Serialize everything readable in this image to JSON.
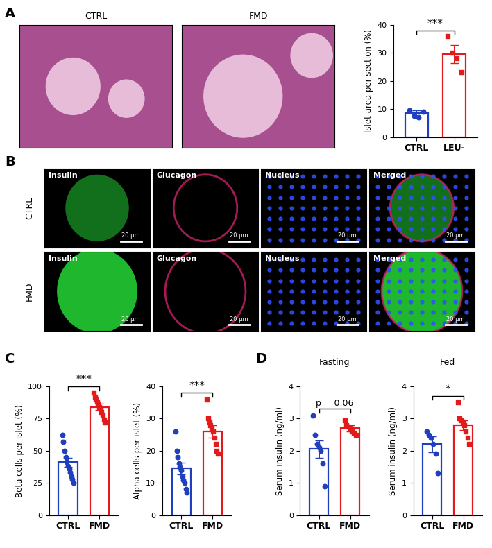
{
  "panel_labels": [
    "A",
    "B",
    "C",
    "D"
  ],
  "images": {
    "he": [
      "CTRL",
      "FMD"
    ],
    "fluorescence": {
      "rows": [
        "CTRL",
        "FMD"
      ],
      "columns": [
        "Insulin",
        "Glucagon",
        "Nucleus",
        "Merged"
      ],
      "scale_bar": "20 μm"
    }
  },
  "chart_data": [
    {
      "type": "bar",
      "ylabel": "Islet area per section (%)",
      "categories": [
        "CTRL",
        "LEU-"
      ],
      "values": [
        8.5,
        29.5
      ],
      "errors": [
        1.0,
        3.3
      ],
      "points": [
        [
          9.5,
          7.5,
          7.0,
          9.0
        ],
        [
          36,
          30,
          28,
          23
        ]
      ],
      "colors": [
        "#1f3fbf",
        "#e31a1c"
      ],
      "ylim": [
        0,
        40
      ],
      "yticks": [
        0,
        10,
        20,
        30,
        40
      ],
      "annotation": "***"
    },
    {
      "type": "bar",
      "ylabel": "Beta cells per islet (%)",
      "categories": [
        "CTRL",
        "FMD"
      ],
      "values": [
        41,
        84
      ],
      "errors": [
        3.5,
        2.5
      ],
      "points": [
        [
          62,
          57,
          50,
          45,
          41,
          38,
          36,
          33,
          30,
          28,
          25
        ],
        [
          95,
          92,
          90,
          88,
          86,
          84,
          83,
          80,
          78,
          74,
          72
        ]
      ],
      "colors": [
        "#1f3fbf",
        "#e31a1c"
      ],
      "ylim": [
        0,
        100
      ],
      "yticks": [
        0,
        25,
        50,
        75,
        100
      ],
      "annotation": "***"
    },
    {
      "type": "bar",
      "ylabel": "Alpha cells per islet (%)",
      "categories": [
        "CTRL",
        "FMD"
      ],
      "values": [
        14.5,
        26
      ],
      "errors": [
        1.8,
        2.0
      ],
      "points": [
        [
          26,
          20,
          18,
          16,
          15,
          14,
          12,
          11,
          10,
          8,
          7
        ],
        [
          36,
          30,
          29,
          28,
          27,
          26,
          24,
          22,
          20,
          19
        ]
      ],
      "colors": [
        "#1f3fbf",
        "#e31a1c"
      ],
      "ylim": [
        0,
        40
      ],
      "yticks": [
        0,
        10,
        20,
        30,
        40
      ],
      "annotation": "***"
    },
    {
      "type": "bar",
      "title": "Fasting",
      "ylabel": "Serum insulin (ng/ml)",
      "categories": [
        "CTRL",
        "FMD"
      ],
      "values": [
        2.05,
        2.7
      ],
      "errors": [
        0.27,
        0.1
      ],
      "points": [
        [
          3.1,
          2.5,
          2.2,
          2.1,
          2.0,
          1.6,
          0.9
        ],
        [
          2.95,
          2.8,
          2.75,
          2.7,
          2.6,
          2.55,
          2.5
        ]
      ],
      "colors": [
        "#1f3fbf",
        "#e31a1c"
      ],
      "ylim": [
        0,
        4
      ],
      "yticks": [
        0,
        1,
        2,
        3,
        4
      ],
      "annotation": "p = 0.06"
    },
    {
      "type": "bar",
      "title": "Fed",
      "ylabel": "Serum insulin (ng/ml)",
      "categories": [
        "CTRL",
        "FMD"
      ],
      "values": [
        2.2,
        2.8
      ],
      "errors": [
        0.25,
        0.15
      ],
      "points": [
        [
          2.6,
          2.5,
          2.4,
          2.2,
          1.9,
          1.3
        ],
        [
          3.5,
          3.0,
          2.95,
          2.9,
          2.8,
          2.6,
          2.4,
          2.2
        ]
      ],
      "colors": [
        "#1f3fbf",
        "#e31a1c"
      ],
      "ylim": [
        0,
        4
      ],
      "yticks": [
        0,
        1,
        2,
        3,
        4
      ],
      "annotation": "*"
    }
  ]
}
